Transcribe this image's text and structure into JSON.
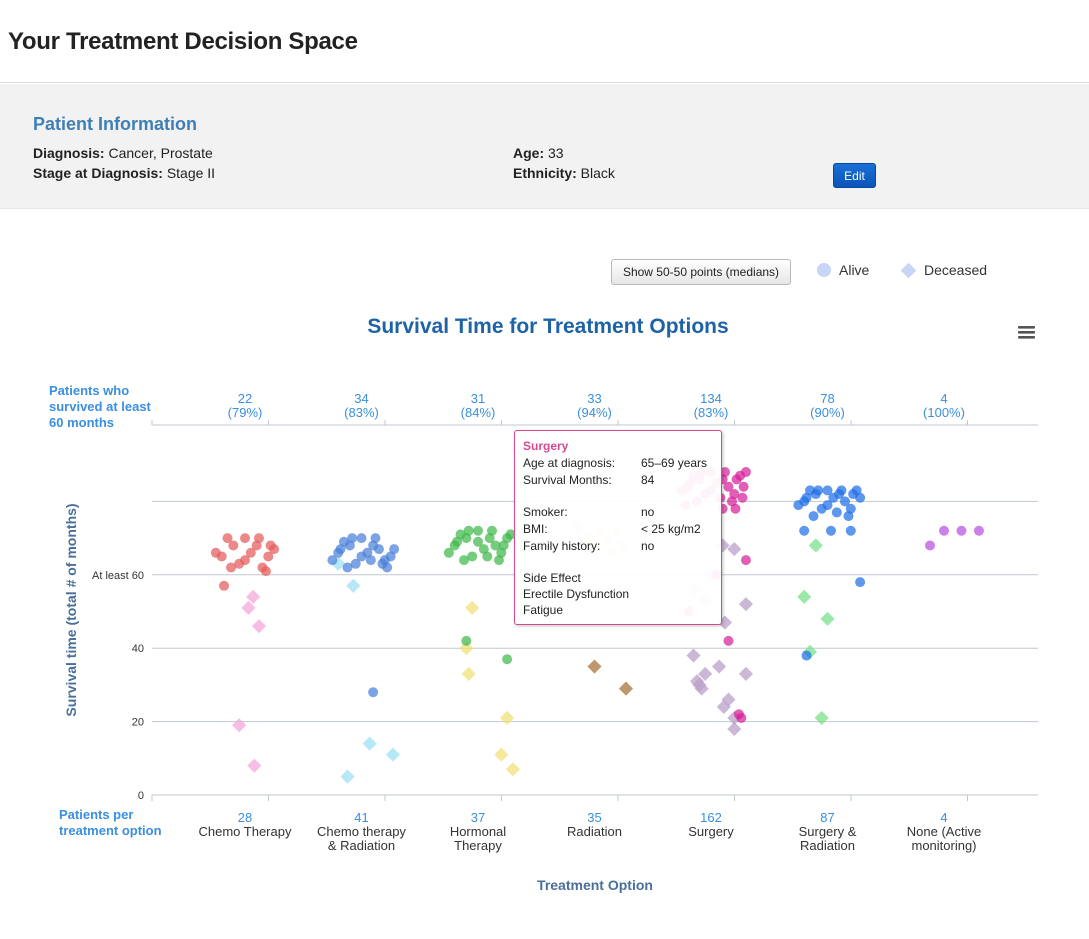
{
  "page": {
    "title": "Your Treatment Decision Space"
  },
  "patient": {
    "heading": "Patient Information",
    "diagnosis_label": "Diagnosis:",
    "diagnosis_value": "Cancer, Prostate",
    "stage_label": "Stage at Diagnosis:",
    "stage_value": "Stage II",
    "age_label": "Age:",
    "age_value": "33",
    "ethnicity_label": "Ethnicity:",
    "ethnicity_value": "Black",
    "edit_label": "Edit"
  },
  "controls": {
    "toggle_label": "Show 50-50 points (medians)",
    "legend": [
      {
        "label": "Alive",
        "shape": "circle",
        "color": "#c7d6f7"
      },
      {
        "label": "Deceased",
        "shape": "diamond",
        "color": "#c7d6f7"
      }
    ],
    "menu_icon": "hamburger-menu-icon"
  },
  "tooltip": {
    "title": "Surgery",
    "rows": [
      {
        "label": "Age at diagnosis:",
        "value": "65–69 years"
      },
      {
        "label": "Survival Months:",
        "value": "84"
      },
      {
        "label": "Smoker:",
        "value": "no"
      },
      {
        "label": "BMI:",
        "value": "< 25 kg/m2"
      },
      {
        "label": "Family history:",
        "value": "no"
      }
    ],
    "side_effect_label": "Side Effect",
    "side_effects": [
      "Erectile Dysfunction",
      "Fatigue"
    ]
  },
  "chart_data": {
    "type": "scatter",
    "title": "Survival Time for Treatment Options",
    "xlabel": "Treatment Option",
    "ylabel": "Survival time (total # of months)",
    "ylim": [
      0,
      100
    ],
    "yticks": [
      {
        "value": 0,
        "label": "0"
      },
      {
        "value": 20,
        "label": "20"
      },
      {
        "value": 40,
        "label": "40"
      },
      {
        "value": 60,
        "label": "At least 60"
      }
    ],
    "grid": true,
    "top_row_label": "Patients who survived at least 60 months",
    "bottom_row_label": "Patients per treatment option",
    "categories": [
      {
        "name": "Chemo Therapy",
        "lines": [
          "Chemo Therapy"
        ],
        "total": 28,
        "survived": 22,
        "survived_pct": "(79%)",
        "color": "#e35b5b",
        "diamond_color": "#f2a8d8",
        "alive": [
          [
            -0.2,
            65
          ],
          [
            -0.1,
            68
          ],
          [
            0.0,
            70
          ],
          [
            0.1,
            68
          ],
          [
            0.2,
            65
          ],
          [
            -0.15,
            70
          ],
          [
            0.15,
            62
          ],
          [
            -0.05,
            63
          ],
          [
            0.05,
            66
          ],
          [
            0.25,
            67
          ],
          [
            -0.25,
            66
          ],
          [
            0.12,
            70
          ],
          [
            -0.12,
            62
          ],
          [
            0.0,
            64
          ],
          [
            0.18,
            61
          ],
          [
            -0.18,
            57
          ],
          [
            0.22,
            68
          ]
        ],
        "deceased": [
          [
            0.07,
            54
          ],
          [
            0.12,
            46
          ],
          [
            0.03,
            51
          ],
          [
            -0.05,
            19
          ],
          [
            0.08,
            8
          ]
        ]
      },
      {
        "name": "Chemo therapy & Radiation",
        "lines": [
          "Chemo therapy",
          "& Radiation"
        ],
        "total": 41,
        "survived": 34,
        "survived_pct": "(83%)",
        "color": "#4a7fd8",
        "diamond_color": "#9fe0f5",
        "alive": [
          [
            -0.2,
            66
          ],
          [
            -0.1,
            68
          ],
          [
            0.0,
            70
          ],
          [
            0.1,
            68
          ],
          [
            0.2,
            64
          ],
          [
            -0.15,
            69
          ],
          [
            0.15,
            67
          ],
          [
            -0.05,
            63
          ],
          [
            0.05,
            66
          ],
          [
            0.25,
            65
          ],
          [
            -0.25,
            64
          ],
          [
            0.12,
            70
          ],
          [
            -0.12,
            62
          ],
          [
            0.0,
            65
          ],
          [
            0.18,
            63
          ],
          [
            -0.18,
            67
          ],
          [
            0.22,
            62
          ],
          [
            -0.08,
            70
          ],
          [
            0.08,
            64
          ],
          [
            0.28,
            67
          ],
          [
            0.1,
            28
          ]
        ],
        "deceased": [
          [
            -0.2,
            63
          ],
          [
            -0.07,
            57
          ],
          [
            0.07,
            14
          ],
          [
            0.27,
            11
          ],
          [
            -0.12,
            5
          ]
        ]
      },
      {
        "name": "Hormonal Therapy",
        "lines": [
          "Hormonal",
          "Therapy"
        ],
        "total": 37,
        "survived": 31,
        "survived_pct": "(84%)",
        "color": "#3fb94a",
        "diamond_color": "#f0e07a",
        "alive": [
          [
            -0.2,
            68
          ],
          [
            -0.1,
            70
          ],
          [
            0.0,
            72
          ],
          [
            0.1,
            70
          ],
          [
            0.2,
            66
          ],
          [
            -0.15,
            71
          ],
          [
            0.15,
            68
          ],
          [
            -0.05,
            65
          ],
          [
            0.05,
            67
          ],
          [
            0.25,
            70
          ],
          [
            -0.25,
            66
          ],
          [
            0.12,
            72
          ],
          [
            -0.12,
            64
          ],
          [
            0.0,
            69
          ],
          [
            0.18,
            64
          ],
          [
            -0.18,
            69
          ],
          [
            0.22,
            68
          ],
          [
            -0.08,
            72
          ],
          [
            0.08,
            65
          ],
          [
            0.28,
            71
          ],
          [
            -0.1,
            42
          ],
          [
            0.25,
            37
          ]
        ],
        "deceased": [
          [
            -0.05,
            51
          ],
          [
            -0.1,
            40
          ],
          [
            -0.08,
            33
          ],
          [
            0.25,
            21
          ],
          [
            0.2,
            11
          ],
          [
            0.3,
            7
          ]
        ]
      },
      {
        "name": "Radiation",
        "lines": [
          "Radiation"
        ],
        "total": 35,
        "survived": 33,
        "survived_pct": "(94%)",
        "color": "#f7c68a",
        "diamond_color": "#a8743b",
        "alive": [
          [
            -0.2,
            68
          ],
          [
            -0.05,
            70
          ],
          [
            0.1,
            70
          ],
          [
            0.25,
            68
          ],
          [
            -0.15,
            73
          ],
          [
            0.05,
            72
          ],
          [
            0.2,
            72
          ],
          [
            0.0,
            67
          ],
          [
            0.15,
            66
          ]
        ],
        "deceased": [
          [
            0.0,
            35
          ],
          [
            0.27,
            29
          ]
        ]
      },
      {
        "name": "Surgery",
        "lines": [
          "Surgery"
        ],
        "total": 162,
        "survived": 134,
        "survived_pct": "(83%)",
        "color": "#d6219a",
        "diamond_color": "#b9a0c8",
        "alive": [
          [
            -0.2,
            84
          ],
          [
            -0.1,
            86
          ],
          [
            0.0,
            88
          ],
          [
            0.1,
            86
          ],
          [
            0.2,
            82
          ],
          [
            -0.15,
            87
          ],
          [
            0.15,
            84
          ],
          [
            -0.05,
            82
          ],
          [
            0.05,
            85
          ],
          [
            0.25,
            87
          ],
          [
            -0.25,
            83
          ],
          [
            0.12,
            88
          ],
          [
            -0.12,
            80
          ],
          [
            0.0,
            83
          ],
          [
            0.18,
            80
          ],
          [
            -0.18,
            85
          ],
          [
            0.22,
            86
          ],
          [
            -0.08,
            88
          ],
          [
            0.08,
            81
          ],
          [
            0.28,
            84
          ],
          [
            0.3,
            88
          ],
          [
            0.27,
            81
          ],
          [
            0.21,
            78
          ],
          [
            0.3,
            64
          ],
          [
            0.15,
            42
          ],
          [
            0.24,
            22
          ],
          [
            0.26,
            21
          ],
          [
            -0.19,
            50
          ],
          [
            0.1,
            78
          ],
          [
            -0.22,
            79
          ],
          [
            0.05,
            60
          ]
        ],
        "deceased": [
          [
            -0.15,
            56
          ],
          [
            0.0,
            60
          ],
          [
            -0.05,
            53
          ],
          [
            0.1,
            68
          ],
          [
            0.2,
            67
          ],
          [
            0.3,
            52
          ],
          [
            0.12,
            47
          ],
          [
            -0.15,
            38
          ],
          [
            -0.12,
            31
          ],
          [
            -0.08,
            29
          ],
          [
            0.07,
            35
          ],
          [
            -0.05,
            33
          ],
          [
            0.15,
            26
          ],
          [
            0.11,
            24
          ],
          [
            0.2,
            21
          ],
          [
            0.2,
            18
          ],
          [
            0.3,
            33
          ],
          [
            -0.1,
            30
          ]
        ]
      },
      {
        "name": "Surgery & Radiation",
        "lines": [
          "Surgery &",
          "Radiation"
        ],
        "total": 87,
        "survived": 78,
        "survived_pct": "(90%)",
        "color": "#1f6fe8",
        "diamond_color": "#7be08c",
        "alive": [
          [
            -0.2,
            80
          ],
          [
            -0.1,
            82
          ],
          [
            0.0,
            83
          ],
          [
            0.1,
            82
          ],
          [
            0.2,
            78
          ],
          [
            -0.15,
            83
          ],
          [
            0.15,
            80
          ],
          [
            -0.05,
            78
          ],
          [
            0.05,
            81
          ],
          [
            0.25,
            83
          ],
          [
            -0.25,
            79
          ],
          [
            0.12,
            83
          ],
          [
            -0.12,
            76
          ],
          [
            0.0,
            79
          ],
          [
            0.18,
            76
          ],
          [
            -0.18,
            81
          ],
          [
            0.22,
            82
          ],
          [
            -0.08,
            83
          ],
          [
            0.08,
            77
          ],
          [
            0.28,
            81
          ],
          [
            0.2,
            72
          ],
          [
            0.03,
            72
          ],
          [
            -0.2,
            72
          ],
          [
            0.28,
            58
          ],
          [
            -0.18,
            38
          ]
        ],
        "deceased": [
          [
            -0.2,
            54
          ],
          [
            0.0,
            48
          ],
          [
            -0.15,
            39
          ],
          [
            -0.05,
            21
          ],
          [
            -0.1,
            68
          ]
        ]
      },
      {
        "name": "None (Active monitoring)",
        "lines": [
          "None (Active",
          "monitoring)"
        ],
        "total": 4,
        "survived": 4,
        "survived_pct": "(100%)",
        "color": "#b84fe0",
        "diamond_color": "#b84fe0",
        "alive": [
          [
            -0.12,
            68
          ],
          [
            0.0,
            72
          ],
          [
            0.15,
            72
          ],
          [
            0.3,
            72
          ]
        ],
        "deceased": []
      }
    ]
  }
}
